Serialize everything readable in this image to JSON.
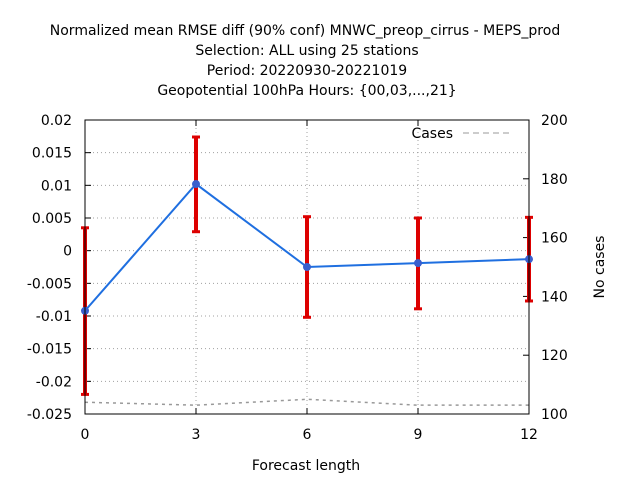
{
  "chart_data": {
    "type": "line",
    "title_lines": [
      "Normalized mean RMSE diff (90% conf) MNWC_preop_cirrus - MEPS_prod",
      "Selection: ALL using    25 stations",
      "Period: 20220930-20221019",
      "Geopotential 100hPa   Hours: {00,03,...,21}"
    ],
    "xlabel": "Forecast length",
    "ylabel_right": "No cases",
    "x_ticks": [
      "0",
      "3",
      "6",
      "9",
      "12"
    ],
    "xlim": [
      0,
      12
    ],
    "y_ticks": [
      "-0.025",
      "-0.02",
      "-0.015",
      "-0.01",
      "-0.005",
      "0",
      "0.005",
      "0.01",
      "0.015",
      "0.02"
    ],
    "ylim": [
      -0.025,
      0.02
    ],
    "y2_ticks": [
      "100",
      "120",
      "140",
      "160",
      "180",
      "200"
    ],
    "y2lim": [
      100,
      200
    ],
    "grid": true,
    "legend_position": "top-right",
    "series": [
      {
        "x": [
          0,
          3,
          6,
          9,
          12
        ],
        "values": [
          -0.0092,
          0.0102,
          -0.0025,
          -0.0019,
          -0.0013
        ],
        "err_low": [
          -0.022,
          0.0029,
          -0.0102,
          -0.0089,
          -0.0077
        ],
        "err_high": [
          0.0035,
          0.0174,
          0.0052,
          0.005,
          0.0051
        ],
        "color": "#1f6fe0",
        "marker_color": "#3a5fcd",
        "errbar_color": "#dd0000"
      },
      {
        "name": "Cases",
        "axis": "right",
        "x": [
          0,
          3,
          6,
          9,
          12
        ],
        "values": [
          104,
          103,
          105,
          103,
          103
        ],
        "color": "#999999"
      }
    ]
  }
}
